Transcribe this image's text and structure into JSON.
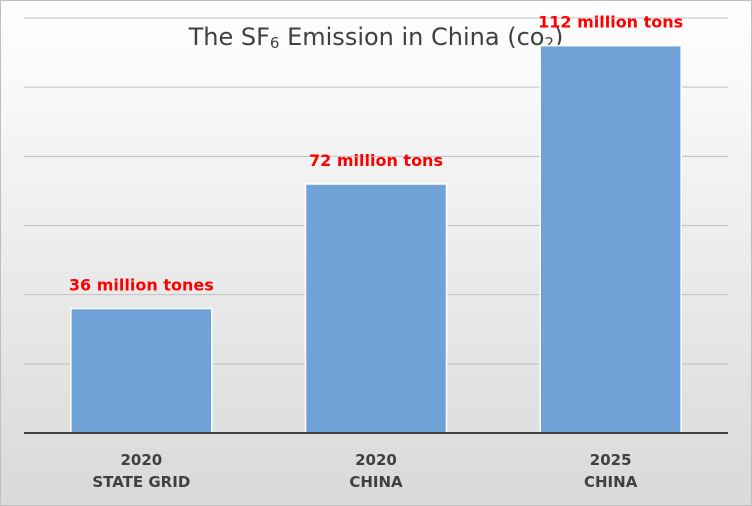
{
  "title": {
    "parts": [
      {
        "text": "The SF",
        "sub": false
      },
      {
        "text": "6",
        "sub": true
      },
      {
        "text": " Emission in China (co",
        "sub": false
      },
      {
        "text": "2",
        "sub": true
      },
      {
        "text": ")",
        "sub": false
      }
    ]
  },
  "colors": {
    "bar_fill": "#6FA3D8",
    "bar_stroke": "#FFFFFF",
    "label": "#FF0000",
    "text": "#404040",
    "grid": "#C0C0C0",
    "axis": "#404040",
    "background_top": "#FFFFFF",
    "background_bottom": "#D9D9D9"
  },
  "chart_data": {
    "type": "bar",
    "title": "The SF6 Emission in China (co2)",
    "xlabel": "",
    "ylabel": "",
    "categories": [
      [
        "2020",
        "STATE GRID"
      ],
      [
        "2020",
        "CHINA"
      ],
      [
        "2025",
        "CHINA"
      ]
    ],
    "values": [
      36,
      72,
      112
    ],
    "data_labels": [
      "36 million tones",
      "72 million tons",
      "112 million tons"
    ],
    "ylim": [
      0,
      120
    ],
    "grid": true,
    "legend": "none"
  }
}
